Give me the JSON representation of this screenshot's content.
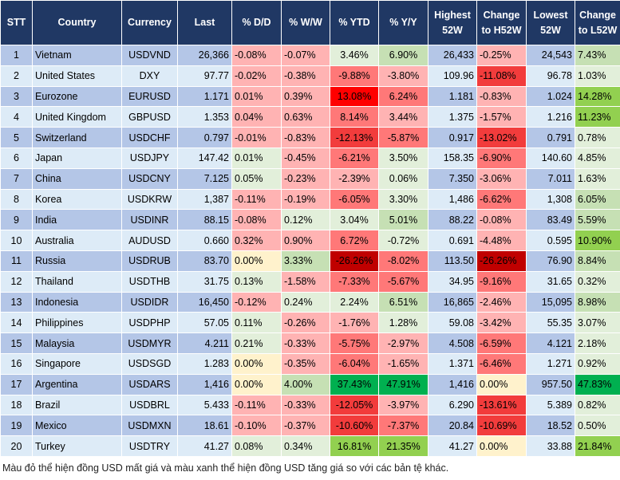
{
  "headers": [
    "STT",
    "Country",
    "Currency",
    "Last",
    "% D/D",
    "% W/W",
    "% YTD",
    "% Y/Y",
    "Highest 52W",
    "Change to H52W",
    "Lowest 52W",
    "Change to L52W"
  ],
  "colors": {
    "lr": "#ffb3b3",
    "mr": "#ff7878",
    "r2": "#f23c3c",
    "rr": "#ff0000",
    "dr": "#c00000",
    "lg": "#e2efda",
    "mg": "#c6e0b4",
    "g": "#92d050",
    "dg": "#00b050",
    "y": "#fff2cc",
    "header": "#203864"
  },
  "rows": [
    {
      "cells": [
        "1",
        "Vietnam",
        "USDVND",
        "26,366",
        "-0.08%",
        "-0.07%",
        "3.46%",
        "6.90%",
        "26,433",
        "-0.25%",
        "24,543",
        "7.43%"
      ],
      "shades": [
        "lr",
        "lr",
        "lg",
        "mg",
        "lr",
        "mg"
      ]
    },
    {
      "cells": [
        "2",
        "United States",
        "DXY",
        "97.77",
        "-0.02%",
        "-0.38%",
        "-9.88%",
        "-3.80%",
        "109.96",
        "-11.08%",
        "96.78",
        "1.03%"
      ],
      "shades": [
        "lr",
        "lr",
        "mr",
        "lr",
        "r2",
        "lg"
      ]
    },
    {
      "cells": [
        "3",
        "Eurozone",
        "EURUSD",
        "1.171",
        "0.01%",
        "0.39%",
        "13.08%",
        "6.24%",
        "1.181",
        "-0.83%",
        "1.024",
        "14.28%"
      ],
      "shades": [
        "lr",
        "lr",
        "rr",
        "mr",
        "lr",
        "g"
      ]
    },
    {
      "cells": [
        "4",
        "United Kingdom",
        "GBPUSD",
        "1.353",
        "0.04%",
        "0.63%",
        "8.14%",
        "3.44%",
        "1.375",
        "-1.57%",
        "1.216",
        "11.23%"
      ],
      "shades": [
        "lr",
        "lr",
        "mr",
        "lr",
        "lr",
        "g"
      ]
    },
    {
      "cells": [
        "5",
        "Switzerland",
        "USDCHF",
        "0.797",
        "-0.01%",
        "-0.83%",
        "-12.13%",
        "-5.87%",
        "0.917",
        "-13.02%",
        "0.791",
        "0.78%"
      ],
      "shades": [
        "lr",
        "lr",
        "r2",
        "mr",
        "r2",
        "lg"
      ]
    },
    {
      "cells": [
        "6",
        "Japan",
        "USDJPY",
        "147.42",
        "0.01%",
        "-0.45%",
        "-6.21%",
        "3.50%",
        "158.35",
        "-6.90%",
        "140.60",
        "4.85%"
      ],
      "shades": [
        "lg",
        "lr",
        "mr",
        "lg",
        "mr",
        "lg"
      ]
    },
    {
      "cells": [
        "7",
        "China",
        "USDCNY",
        "7.125",
        "0.05%",
        "-0.23%",
        "-2.39%",
        "0.06%",
        "7.350",
        "-3.06%",
        "7.011",
        "1.63%"
      ],
      "shades": [
        "lg",
        "lr",
        "lr",
        "lg",
        "lr",
        "lg"
      ]
    },
    {
      "cells": [
        "8",
        "Korea",
        "USDKRW",
        "1,387",
        "-0.11%",
        "-0.19%",
        "-6.05%",
        "3.30%",
        "1,486",
        "-6.62%",
        "1,308",
        "6.05%"
      ],
      "shades": [
        "lr",
        "lr",
        "mr",
        "lg",
        "mr",
        "mg"
      ]
    },
    {
      "cells": [
        "9",
        "India",
        "USDINR",
        "88.15",
        "-0.08%",
        "0.12%",
        "3.04%",
        "5.01%",
        "88.22",
        "-0.08%",
        "83.49",
        "5.59%"
      ],
      "shades": [
        "lr",
        "lg",
        "lg",
        "mg",
        "lr",
        "mg"
      ]
    },
    {
      "cells": [
        "10",
        "Australia",
        "AUDUSD",
        "0.660",
        "0.32%",
        "0.90%",
        "6.72%",
        "-0.72%",
        "0.691",
        "-4.48%",
        "0.595",
        "10.90%"
      ],
      "shades": [
        "lr",
        "lr",
        "mr",
        "lg",
        "lr",
        "g"
      ]
    },
    {
      "cells": [
        "11",
        "Russia",
        "USDRUB",
        "83.70",
        "0.00%",
        "3.33%",
        "-26.26%",
        "-8.02%",
        "113.50",
        "-26.26%",
        "76.90",
        "8.84%"
      ],
      "shades": [
        "y",
        "mg",
        "dr",
        "mr",
        "dr",
        "mg"
      ]
    },
    {
      "cells": [
        "12",
        "Thailand",
        "USDTHB",
        "31.75",
        "0.13%",
        "-1.58%",
        "-7.33%",
        "-5.67%",
        "34.95",
        "-9.16%",
        "31.65",
        "0.32%"
      ],
      "shades": [
        "lg",
        "lr",
        "mr",
        "mr",
        "mr",
        "lg"
      ]
    },
    {
      "cells": [
        "13",
        "Indonesia",
        "USDIDR",
        "16,450",
        "-0.12%",
        "0.24%",
        "2.24%",
        "6.51%",
        "16,865",
        "-2.46%",
        "15,095",
        "8.98%"
      ],
      "shades": [
        "lr",
        "lg",
        "lg",
        "mg",
        "lr",
        "mg"
      ]
    },
    {
      "cells": [
        "14",
        "Philippines",
        "USDPHP",
        "57.05",
        "0.11%",
        "-0.26%",
        "-1.76%",
        "1.28%",
        "59.08",
        "-3.42%",
        "55.35",
        "3.07%"
      ],
      "shades": [
        "lg",
        "lr",
        "lr",
        "lg",
        "lr",
        "lg"
      ]
    },
    {
      "cells": [
        "15",
        "Malaysia",
        "USDMYR",
        "4.211",
        "0.21%",
        "-0.33%",
        "-5.75%",
        "-2.97%",
        "4.508",
        "-6.59%",
        "4.121",
        "2.18%"
      ],
      "shades": [
        "lg",
        "lr",
        "mr",
        "lr",
        "mr",
        "lg"
      ]
    },
    {
      "cells": [
        "16",
        "Singapore",
        "USDSGD",
        "1.283",
        "0.00%",
        "-0.35%",
        "-6.04%",
        "-1.65%",
        "1.371",
        "-6.46%",
        "1.271",
        "0.92%"
      ],
      "shades": [
        "y",
        "lr",
        "mr",
        "lr",
        "mr",
        "lg"
      ]
    },
    {
      "cells": [
        "17",
        "Argentina",
        "USDARS",
        "1,416",
        "0.00%",
        "4.00%",
        "37.43%",
        "47.91%",
        "1,416",
        "0.00%",
        "957.50",
        "47.83%"
      ],
      "shades": [
        "y",
        "mg",
        "dg",
        "dg",
        "y",
        "dg"
      ]
    },
    {
      "cells": [
        "18",
        "Brazil",
        "USDBRL",
        "5.433",
        "-0.11%",
        "-0.33%",
        "-12.05%",
        "-3.97%",
        "6.290",
        "-13.61%",
        "5.389",
        "0.82%"
      ],
      "shades": [
        "lr",
        "lr",
        "r2",
        "lr",
        "r2",
        "lg"
      ]
    },
    {
      "cells": [
        "19",
        "Mexico",
        "USDMXN",
        "18.61",
        "-0.10%",
        "-0.37%",
        "-10.60%",
        "-7.37%",
        "20.84",
        "-10.69%",
        "18.52",
        "0.50%"
      ],
      "shades": [
        "lr",
        "lr",
        "r2",
        "mr",
        "r2",
        "lg"
      ]
    },
    {
      "cells": [
        "20",
        "Turkey",
        "USDTRY",
        "41.27",
        "0.08%",
        "0.34%",
        "16.81%",
        "21.35%",
        "41.27",
        "0.00%",
        "33.88",
        "21.84%"
      ],
      "shades": [
        "lg",
        "lg",
        "g",
        "g",
        "y",
        "g"
      ]
    }
  ],
  "note": "Màu đỏ thể hiện đồng USD mất giá và màu xanh thể hiện đồng USD tăng giá so với các bản tệ khác."
}
